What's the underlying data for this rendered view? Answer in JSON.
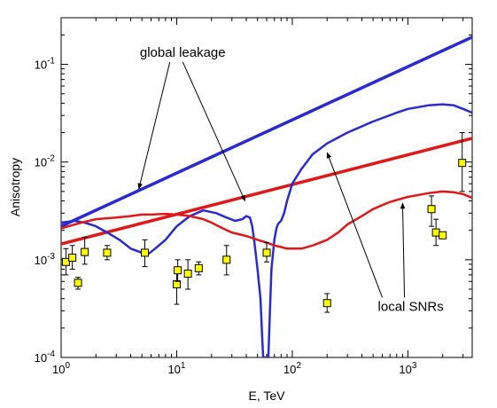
{
  "chart_data": {
    "type": "line",
    "title": "",
    "xlabel": "E, TeV",
    "ylabel": "Anisotropy",
    "xscale": "log",
    "yscale": "log",
    "xlim": [
      1,
      3600
    ],
    "ylim": [
      0.0001,
      0.3
    ],
    "grid": false,
    "x_ticks": [
      {
        "value": 1,
        "base": "10",
        "exp": "0"
      },
      {
        "value": 10,
        "base": "10",
        "exp": "1"
      },
      {
        "value": 100,
        "base": "10",
        "exp": "2"
      },
      {
        "value": 1000,
        "base": "10",
        "exp": "3"
      }
    ],
    "y_ticks": [
      {
        "value": 0.0001,
        "base": "10",
        "exp": "-4"
      },
      {
        "value": 0.001,
        "base": "10",
        "exp": "-3"
      },
      {
        "value": 0.01,
        "base": "10",
        "exp": "-2"
      },
      {
        "value": 0.1,
        "base": "10",
        "exp": "-1"
      }
    ],
    "colors": {
      "blue": "#2a2ad4",
      "red": "#e01818",
      "points": "#ffff00"
    },
    "series": [
      {
        "color": "blue",
        "width": 3.5,
        "x": [
          1,
          3600
        ],
        "y": [
          0.0022,
          0.19
        ]
      },
      {
        "color": "red",
        "width": 3.5,
        "x": [
          1,
          3600
        ],
        "y": [
          0.00145,
          0.0175
        ]
      },
      {
        "color": "blue",
        "width": 2.5,
        "x": [
          1,
          1.3,
          1.6,
          2.0,
          2.5,
          3.2,
          4.0,
          5.0,
          5.7,
          6.5,
          8,
          10,
          13,
          17,
          22,
          27,
          32,
          37,
          40,
          43,
          45,
          47,
          50,
          53,
          55,
          56,
          57,
          60,
          62,
          64,
          66,
          70,
          73,
          75,
          77,
          80,
          85,
          90,
          100,
          120,
          150,
          200,
          300,
          500,
          800,
          1000,
          1500,
          2000,
          2500,
          3000,
          3600
        ],
        "y": [
          0.0024,
          0.0025,
          0.0024,
          0.0022,
          0.0019,
          0.0016,
          0.0013,
          0.00118,
          0.00115,
          0.0013,
          0.0016,
          0.0022,
          0.0028,
          0.0032,
          0.003,
          0.0027,
          0.0025,
          0.0026,
          0.0028,
          0.0027,
          0.0022,
          0.0015,
          0.0008,
          0.0004,
          0.00015,
          0.0001,
          0.0001,
          0.0001,
          0.0001,
          0.0003,
          0.0008,
          0.0016,
          0.0021,
          0.0023,
          0.0024,
          0.0025,
          0.003,
          0.004,
          0.006,
          0.0085,
          0.012,
          0.0155,
          0.02,
          0.026,
          0.032,
          0.035,
          0.038,
          0.039,
          0.038,
          0.035,
          0.032
        ]
      },
      {
        "color": "red",
        "width": 2.5,
        "x": [
          1,
          1.5,
          2,
          3,
          4,
          5,
          6,
          8,
          10,
          13,
          17,
          20,
          25,
          30,
          40,
          50,
          60,
          70,
          80,
          90,
          100,
          120,
          150,
          200,
          250,
          300,
          400,
          500,
          700,
          1000,
          1500,
          2000,
          2500,
          3000,
          3600
        ],
        "y": [
          0.0021,
          0.0024,
          0.0026,
          0.0027,
          0.0028,
          0.0029,
          0.0029,
          0.00295,
          0.0029,
          0.0028,
          0.0026,
          0.0024,
          0.0021,
          0.0019,
          0.00175,
          0.0016,
          0.0015,
          0.0014,
          0.00135,
          0.0013,
          0.0013,
          0.0013,
          0.0014,
          0.0016,
          0.0019,
          0.0023,
          0.0028,
          0.0033,
          0.0039,
          0.0044,
          0.0048,
          0.005,
          0.0049,
          0.0047,
          0.0043
        ]
      }
    ],
    "points": [
      {
        "x": 1.1,
        "y": 0.00095,
        "lo": 0.0007,
        "hi": 0.0013
      },
      {
        "x": 1.25,
        "y": 0.00105,
        "lo": 0.0008,
        "hi": 0.0014
      },
      {
        "x": 1.4,
        "y": 0.00058,
        "lo": 0.0005,
        "hi": 0.00066
      },
      {
        "x": 1.6,
        "y": 0.0012,
        "lo": 0.0009,
        "hi": 0.0017
      },
      {
        "x": 2.5,
        "y": 0.00118,
        "lo": 0.001,
        "hi": 0.0014
      },
      {
        "x": 5.3,
        "y": 0.00118,
        "lo": 0.00085,
        "hi": 0.0016
      },
      {
        "x": 10,
        "y": 0.00056,
        "lo": 0.00035,
        "hi": 0.0008
      },
      {
        "x": 10.2,
        "y": 0.00078,
        "lo": 0.0006,
        "hi": 0.001
      },
      {
        "x": 12.5,
        "y": 0.00072,
        "lo": 0.0005,
        "hi": 0.001
      },
      {
        "x": 15.5,
        "y": 0.00082,
        "lo": 0.0007,
        "hi": 0.00095
      },
      {
        "x": 27,
        "y": 0.001,
        "lo": 0.0007,
        "hi": 0.0014
      },
      {
        "x": 60,
        "y": 0.00118,
        "lo": 0.00095,
        "hi": 0.0015
      },
      {
        "x": 200,
        "y": 0.00036,
        "lo": 0.00029,
        "hi": 0.00045
      },
      {
        "x": 1600,
        "y": 0.0033,
        "lo": 0.0022,
        "hi": 0.0045
      },
      {
        "x": 1750,
        "y": 0.0019,
        "lo": 0.0014,
        "hi": 0.0026
      },
      {
        "x": 2000,
        "y": 0.00178,
        "lo": 0.00165,
        "hi": 0.0019
      },
      {
        "x": 2950,
        "y": 0.0098,
        "lo": 0.005,
        "hi": 0.02
      }
    ],
    "annotations": [
      {
        "text": "global leakage",
        "x": 4.8,
        "y": 0.12,
        "arrows": [
          {
            "x": 4.7,
            "y": 0.0053
          },
          {
            "x": 39,
            "y": 0.004
          }
        ]
      },
      {
        "text": "local SNRs",
        "x": 550,
        "y": 0.0003,
        "arrows": [
          {
            "x": 200,
            "y": 0.0125
          },
          {
            "x": 900,
            "y": 0.0038
          }
        ]
      }
    ]
  }
}
